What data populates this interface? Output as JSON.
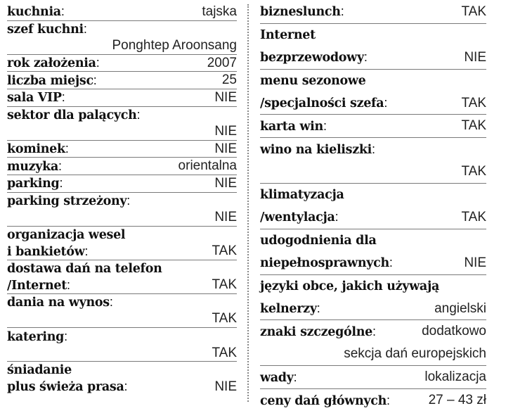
{
  "left": [
    {
      "lines": [
        {
          "label": "kuchnia",
          "colon": ":",
          "value": "tajska"
        }
      ]
    },
    {
      "lines": [
        {
          "label": "szef kuchni",
          "colon": ":"
        },
        {
          "value": "Ponghtep Aroonsang"
        }
      ]
    },
    {
      "lines": [
        {
          "label": "rok założenia",
          "colon": ":",
          "value": "2007"
        }
      ]
    },
    {
      "lines": [
        {
          "label": "liczba miejsc",
          "colon": ":",
          "value": "25"
        }
      ]
    },
    {
      "lines": [
        {
          "label": "sala VIP",
          "colon": ":",
          "value": "NIE"
        }
      ]
    },
    {
      "lines": [
        {
          "label": "sektor dla palących",
          "colon": ":"
        },
        {
          "value": "NIE"
        }
      ]
    },
    {
      "lines": [
        {
          "label": "kominek",
          "colon": ":",
          "value": "NIE"
        }
      ]
    },
    {
      "lines": [
        {
          "label": "muzyka",
          "colon": ":",
          "value": "orientalna"
        }
      ]
    },
    {
      "lines": [
        {
          "label": "parking",
          "colon": ":",
          "value": "NIE"
        }
      ]
    },
    {
      "lines": [
        {
          "label": "parking strzeżony",
          "colon": ":"
        },
        {
          "value": "NIE"
        }
      ]
    },
    {
      "lines": [
        {
          "label": "organizacja wesel"
        },
        {
          "label": "i bankietów",
          "colon": ":",
          "value": "TAK"
        }
      ]
    },
    {
      "lines": [
        {
          "label": "dostawa dań na telefon"
        },
        {
          "label": "/Internet",
          "colon": ":",
          "value": "TAK"
        }
      ]
    },
    {
      "lines": [
        {
          "label": "dania na wynos",
          "colon": ":"
        },
        {
          "value": "TAK"
        }
      ]
    },
    {
      "lines": [
        {
          "label": "katering",
          "colon": ":"
        },
        {
          "value": "TAK"
        }
      ]
    },
    {
      "lines": [
        {
          "label": "śniadanie"
        },
        {
          "label": "plus świeża prasa",
          "colon": ":",
          "value": "NIE"
        }
      ]
    }
  ],
  "right": [
    {
      "lines": [
        {
          "label": "bizneslunch",
          "colon": ":",
          "value": "TAK"
        }
      ]
    },
    {
      "lines": [
        {
          "label": "Internet"
        },
        {
          "label": "bezprzewodowy",
          "colon": ":",
          "value": "NIE"
        }
      ]
    },
    {
      "lines": [
        {
          "label": "menu sezonowe"
        },
        {
          "label": "/specjalności szefa",
          "colon": ":",
          "value": "TAK"
        }
      ]
    },
    {
      "lines": [
        {
          "label": "karta win",
          "colon": ":",
          "value": "TAK"
        }
      ]
    },
    {
      "lines": [
        {
          "label": "wino na kieliszki",
          "colon": ":"
        },
        {
          "value": "TAK"
        }
      ]
    },
    {
      "lines": [
        {
          "label": "klimatyzacja"
        },
        {
          "label": "/wentylacja",
          "colon": ":",
          "value": "TAK"
        }
      ]
    },
    {
      "lines": [
        {
          "label": "udogodnienia dla"
        },
        {
          "label": "niepełnosprawnych",
          "colon": ":",
          "value": "NIE"
        }
      ]
    },
    {
      "lines": [
        {
          "label": "języki obce, jakich używają"
        },
        {
          "label": "kelnerzy",
          "colon": ":",
          "value": "angielski"
        }
      ]
    },
    {
      "lines": [
        {
          "label": "znaki szczególne",
          "colon": ":",
          "value": "dodatkowo"
        },
        {
          "value": "sekcja dań europejskich"
        }
      ]
    },
    {
      "lines": [
        {
          "label": "wady",
          "colon": ":",
          "value": "lokalizacja"
        }
      ]
    },
    {
      "lines": [
        {
          "label": "ceny dań głównych",
          "colon": ":",
          "value": "27 – 43 zł"
        }
      ]
    }
  ]
}
